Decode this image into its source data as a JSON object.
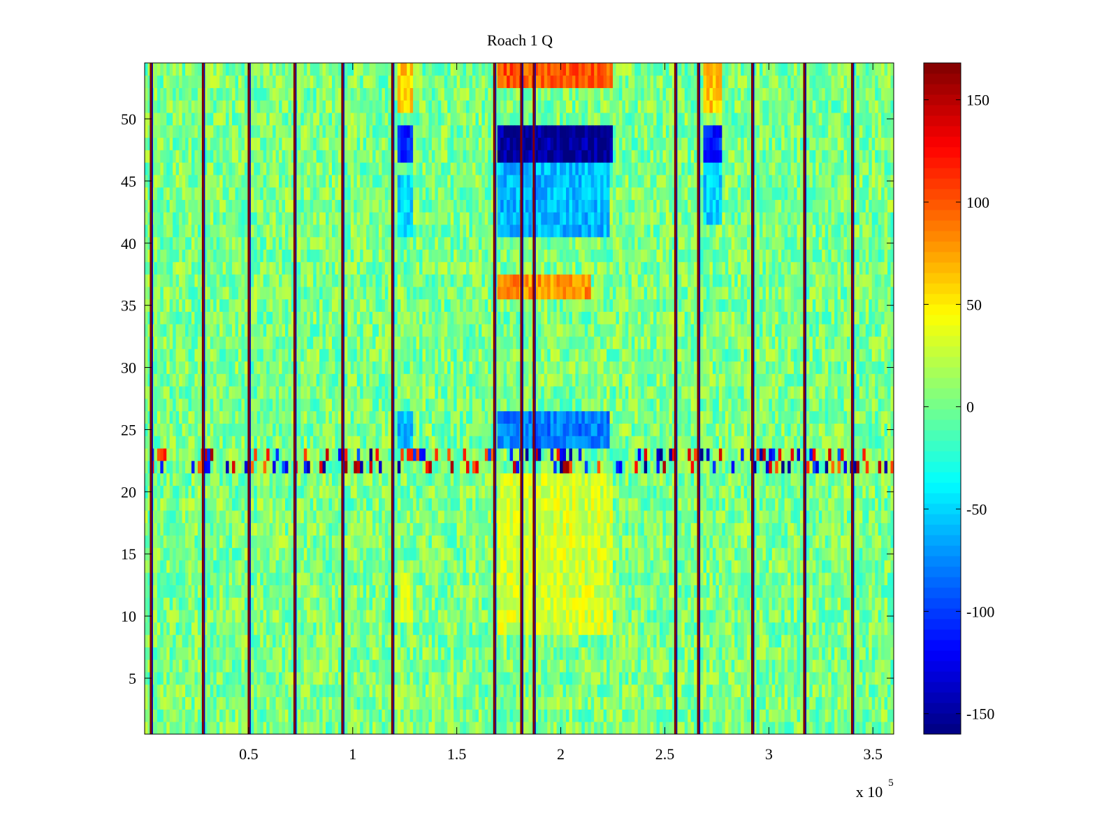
{
  "chart_data": {
    "type": "heatmap",
    "title": "Roach 1 Q",
    "xlabel": "",
    "ylabel": "",
    "x_multiplier_label": "x 10",
    "x_multiplier_exponent": "5",
    "xlim": [
      0,
      3.6
    ],
    "ylim": [
      0.5,
      54.5
    ],
    "rows": 54,
    "x_ticks": [
      0.5,
      1,
      1.5,
      2,
      2.5,
      3,
      3.5
    ],
    "x_tick_labels": [
      "0.5",
      "1",
      "1.5",
      "2",
      "2.5",
      "3",
      "3.5"
    ],
    "y_ticks": [
      5,
      10,
      15,
      20,
      25,
      30,
      35,
      40,
      45,
      50
    ],
    "y_tick_labels": [
      "5",
      "10",
      "15",
      "20",
      "25",
      "30",
      "35",
      "40",
      "45",
      "50"
    ],
    "colorbar": {
      "colormap": "jet",
      "clim": [
        -160,
        168
      ],
      "ticks": [
        150,
        100,
        50,
        0,
        -50,
        -100,
        -150
      ],
      "tick_labels": [
        "150",
        "100",
        "50",
        "0",
        "-50",
        "-100",
        "-150"
      ]
    },
    "vertical_stripes_x": [
      0.03,
      0.28,
      0.5,
      0.72,
      0.95,
      1.19,
      1.68,
      1.81,
      1.87,
      2.55,
      2.66,
      2.92,
      3.17,
      3.4
    ],
    "anomalies": [
      {
        "x_range": [
          1.7,
          2.25
        ],
        "y_range": [
          47,
          49
        ],
        "value": -150
      },
      {
        "x_range": [
          1.22,
          1.29
        ],
        "y_range": [
          47,
          49
        ],
        "value": -110
      },
      {
        "x_range": [
          2.68,
          2.77
        ],
        "y_range": [
          47,
          49
        ],
        "value": -110
      },
      {
        "x_range": [
          1.7,
          2.23
        ],
        "y_range": [
          41,
          46
        ],
        "value": -60
      },
      {
        "x_range": [
          1.22,
          1.29
        ],
        "y_range": [
          41,
          45
        ],
        "value": -50
      },
      {
        "x_range": [
          2.68,
          2.77
        ],
        "y_range": [
          42,
          46
        ],
        "value": -50
      },
      {
        "x_range": [
          1.7,
          2.23
        ],
        "y_range": [
          24,
          26
        ],
        "value": -80
      },
      {
        "x_range": [
          1.22,
          1.29
        ],
        "y_range": [
          24,
          26
        ],
        "value": -60
      },
      {
        "x_range": [
          1.7,
          2.15
        ],
        "y_range": [
          36,
          37
        ],
        "value": 80
      },
      {
        "x_range": [
          1.7,
          2.25
        ],
        "y_range": [
          53,
          54
        ],
        "value": 100
      },
      {
        "x_range": [
          1.22,
          1.29
        ],
        "y_range": [
          51,
          54
        ],
        "value": 60
      },
      {
        "x_range": [
          2.68,
          2.77
        ],
        "y_range": [
          51,
          54
        ],
        "value": 60
      },
      {
        "x_range": [
          1.7,
          2.25
        ],
        "y_range": [
          9,
          21
        ],
        "value": 30
      },
      {
        "x_range": [
          1.22,
          1.29
        ],
        "y_range": [
          10,
          13
        ],
        "value": 30
      }
    ],
    "noisy_rows": [
      22,
      23
    ],
    "grid": false,
    "legend": "none"
  }
}
